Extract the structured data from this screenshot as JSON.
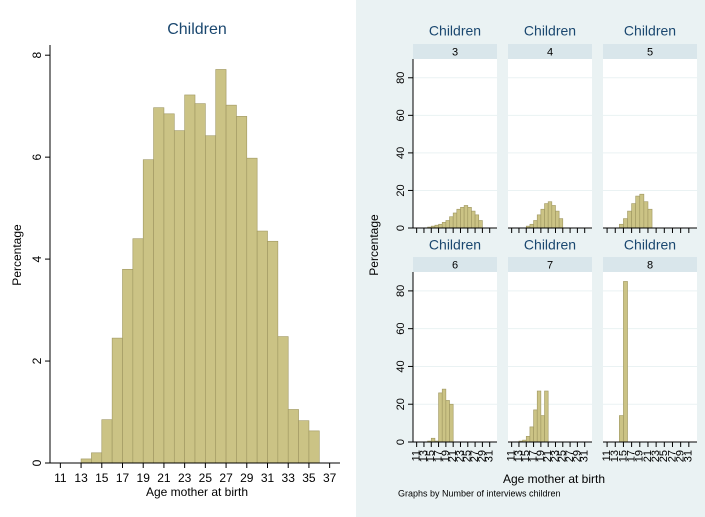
{
  "chart_data": [
    {
      "type": "histogram",
      "title": "Children",
      "x_label": "Age mother at birth",
      "y_label": "Percentage",
      "bins": [
        13,
        14,
        15,
        16,
        17,
        18,
        19,
        20,
        21,
        22,
        23,
        24,
        25,
        26,
        27,
        28,
        29,
        30,
        31,
        32,
        33,
        34,
        35,
        36
      ],
      "values": [
        0.08,
        0.2,
        0.85,
        2.45,
        3.8,
        4.4,
        5.95,
        6.97,
        6.85,
        6.52,
        7.22,
        7.05,
        6.42,
        7.72,
        7.02,
        6.8,
        5.98,
        4.55,
        4.35,
        2.48,
        1.05,
        0.83,
        0.63
      ],
      "color": "#cbc385",
      "xlim": [
        10,
        38
      ],
      "xticks": [
        11,
        13,
        15,
        17,
        19,
        21,
        23,
        25,
        27,
        29,
        31,
        33,
        35,
        37
      ],
      "ylim": [
        0,
        8.2
      ],
      "yticks": [
        0,
        2,
        4,
        6,
        8
      ]
    },
    {
      "type": "histogram",
      "x_label": "Age mother at birth",
      "y_label": "Percentage",
      "note": "Graphs by Number of interviews children",
      "color": "#cbc385",
      "xlim": [
        10,
        33
      ],
      "xticks": [
        11,
        13,
        15,
        17,
        19,
        21,
        23,
        25,
        27,
        29,
        31
      ],
      "ylim": [
        0,
        90
      ],
      "yticks": [
        0,
        20,
        40,
        60,
        80
      ],
      "panels": [
        {
          "title": "Children",
          "label": "3",
          "bins": [
            14,
            15,
            16,
            17,
            18,
            19,
            20,
            21,
            22,
            23,
            24,
            25,
            26,
            27,
            28,
            29
          ],
          "values": [
            0.5,
            1,
            1.5,
            2,
            3,
            4,
            6,
            8,
            10,
            11,
            12,
            11,
            9,
            7,
            4
          ]
        },
        {
          "title": "Children",
          "label": "4",
          "bins": [
            15,
            16,
            17,
            18,
            19,
            20,
            21,
            22,
            23,
            24,
            25
          ],
          "values": [
            1,
            2,
            4,
            7,
            10,
            13,
            14,
            12,
            9,
            5
          ]
        },
        {
          "title": "Children",
          "label": "5",
          "bins": [
            14,
            15,
            16,
            17,
            18,
            19,
            20,
            21,
            22
          ],
          "values": [
            2,
            5,
            9,
            13,
            17,
            18,
            14,
            10
          ]
        },
        {
          "title": "Children",
          "label": "6",
          "bins": [
            14,
            15,
            16,
            17,
            18,
            19,
            20,
            21
          ],
          "values": [
            0.5,
            2,
            0.5,
            26,
            28,
            22,
            20
          ]
        },
        {
          "title": "Children",
          "label": "7",
          "bins": [
            13,
            14,
            15,
            16,
            17,
            18,
            19,
            20,
            21
          ],
          "values": [
            0.5,
            1,
            3,
            8,
            17,
            27,
            14,
            27
          ]
        },
        {
          "title": "Children",
          "label": "8",
          "bins": [
            14,
            15,
            16
          ],
          "values": [
            14,
            85
          ]
        }
      ]
    }
  ]
}
